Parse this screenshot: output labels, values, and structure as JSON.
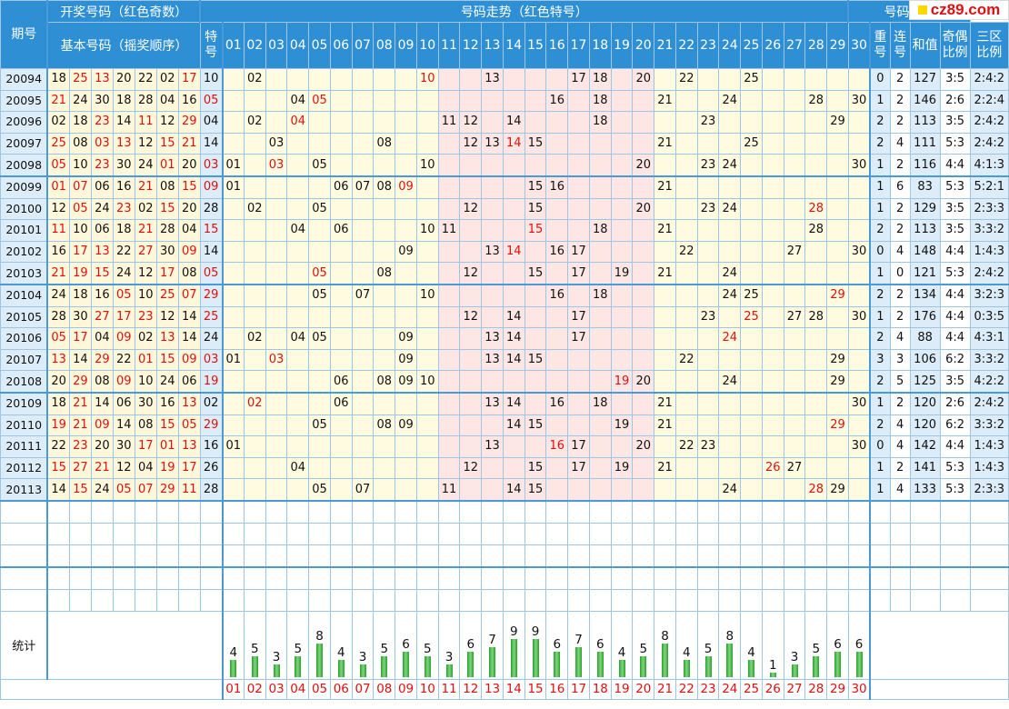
{
  "logo": {
    "text": "cz89.com"
  },
  "header": {
    "issue": "期号",
    "draw_numbers": "开奖号码（红色奇数）",
    "basic_numbers": "基本号码（摇奖顺序）",
    "special": "特号",
    "trend": "号码走势（红色特号）",
    "analysis": "号码分析",
    "repeat": "重号",
    "consecutive": "连号",
    "sum": "和值",
    "odd_even": "奇偶比例",
    "three_zone": "三区比例"
  },
  "columns": [
    "01",
    "02",
    "03",
    "04",
    "05",
    "06",
    "07",
    "08",
    "09",
    "10",
    "11",
    "12",
    "13",
    "14",
    "15",
    "16",
    "17",
    "18",
    "19",
    "20",
    "21",
    "22",
    "23",
    "24",
    "25",
    "26",
    "27",
    "28",
    "29",
    "30"
  ],
  "rows": [
    {
      "issue": "20094",
      "nums": [
        "18",
        "25",
        "13",
        "20",
        "22",
        "02",
        "17"
      ],
      "sp": "10",
      "sp_odd": false,
      "trend": [
        2,
        10,
        13,
        17,
        18,
        20,
        22,
        25
      ],
      "spcol": 10,
      "repeat": "0",
      "cons": "2",
      "sum": "127",
      "oe": "3:5",
      "zone": "2:4:2"
    },
    {
      "issue": "20095",
      "nums": [
        "21",
        "24",
        "30",
        "18",
        "28",
        "04",
        "16"
      ],
      "sp": "05",
      "sp_odd": true,
      "trend": [
        4,
        5,
        16,
        18,
        21,
        24,
        28,
        30
      ],
      "spcol": 5,
      "repeat": "1",
      "cons": "2",
      "sum": "146",
      "oe": "2:6",
      "zone": "2:2:4"
    },
    {
      "issue": "20096",
      "nums": [
        "02",
        "18",
        "23",
        "14",
        "11",
        "12",
        "29"
      ],
      "sp": "04",
      "sp_odd": false,
      "trend": [
        2,
        4,
        11,
        12,
        14,
        18,
        23,
        29
      ],
      "spcol": 4,
      "repeat": "2",
      "cons": "2",
      "sum": "113",
      "oe": "3:5",
      "zone": "2:4:2"
    },
    {
      "issue": "20097",
      "nums": [
        "25",
        "08",
        "03",
        "13",
        "12",
        "15",
        "21"
      ],
      "sp": "14",
      "sp_odd": false,
      "trend": [
        3,
        8,
        12,
        13,
        14,
        15,
        21,
        25
      ],
      "spcol": 14,
      "repeat": "2",
      "cons": "4",
      "sum": "111",
      "oe": "5:3",
      "zone": "2:4:2"
    },
    {
      "issue": "20098",
      "nums": [
        "05",
        "10",
        "23",
        "30",
        "24",
        "01",
        "20"
      ],
      "sp": "03",
      "sp_odd": true,
      "trend": [
        1,
        3,
        5,
        10,
        20,
        23,
        24,
        30
      ],
      "spcol": 3,
      "repeat": "1",
      "cons": "2",
      "sum": "116",
      "oe": "4:4",
      "zone": "4:1:3"
    },
    {
      "issue": "20099",
      "nums": [
        "01",
        "07",
        "06",
        "16",
        "21",
        "08",
        "15"
      ],
      "sp": "09",
      "sp_odd": true,
      "trend": [
        1,
        6,
        7,
        8,
        9,
        15,
        16,
        21
      ],
      "spcol": 9,
      "repeat": "1",
      "cons": "6",
      "sum": "83",
      "oe": "5:3",
      "zone": "5:2:1"
    },
    {
      "issue": "20100",
      "nums": [
        "12",
        "05",
        "24",
        "23",
        "02",
        "15",
        "20"
      ],
      "sp": "28",
      "sp_odd": false,
      "trend": [
        2,
        5,
        12,
        15,
        20,
        23,
        24,
        28
      ],
      "spcol": 28,
      "repeat": "1",
      "cons": "2",
      "sum": "129",
      "oe": "3:5",
      "zone": "2:3:3"
    },
    {
      "issue": "20101",
      "nums": [
        "11",
        "10",
        "06",
        "18",
        "21",
        "28",
        "04"
      ],
      "sp": "15",
      "sp_odd": true,
      "trend": [
        4,
        6,
        10,
        11,
        15,
        18,
        21,
        28
      ],
      "spcol": 15,
      "repeat": "2",
      "cons": "2",
      "sum": "113",
      "oe": "3:5",
      "zone": "3:3:2"
    },
    {
      "issue": "20102",
      "nums": [
        "16",
        "17",
        "13",
        "22",
        "27",
        "30",
        "09"
      ],
      "sp": "14",
      "sp_odd": false,
      "trend": [
        9,
        13,
        14,
        16,
        17,
        22,
        27,
        30
      ],
      "spcol": 14,
      "repeat": "0",
      "cons": "4",
      "sum": "148",
      "oe": "4:4",
      "zone": "1:4:3"
    },
    {
      "issue": "20103",
      "nums": [
        "21",
        "19",
        "15",
        "24",
        "12",
        "17",
        "08"
      ],
      "sp": "05",
      "sp_odd": true,
      "trend": [
        5,
        8,
        12,
        15,
        17,
        19,
        21,
        24
      ],
      "spcol": 5,
      "repeat": "1",
      "cons": "0",
      "sum": "121",
      "oe": "5:3",
      "zone": "2:4:2"
    },
    {
      "issue": "20104",
      "nums": [
        "24",
        "18",
        "16",
        "05",
        "10",
        "25",
        "07"
      ],
      "sp": "29",
      "sp_odd": true,
      "trend": [
        5,
        7,
        10,
        16,
        18,
        24,
        25,
        29
      ],
      "spcol": 29,
      "repeat": "2",
      "cons": "2",
      "sum": "134",
      "oe": "4:4",
      "zone": "3:2:3"
    },
    {
      "issue": "20105",
      "nums": [
        "28",
        "30",
        "27",
        "17",
        "23",
        "12",
        "14"
      ],
      "sp": "25",
      "sp_odd": true,
      "trend": [
        12,
        14,
        17,
        23,
        25,
        27,
        28,
        30
      ],
      "spcol": 25,
      "repeat": "1",
      "cons": "2",
      "sum": "176",
      "oe": "4:4",
      "zone": "0:3:5"
    },
    {
      "issue": "20106",
      "nums": [
        "05",
        "17",
        "04",
        "09",
        "02",
        "13",
        "14"
      ],
      "sp": "24",
      "sp_odd": false,
      "trend": [
        2,
        4,
        5,
        9,
        13,
        14,
        17,
        24
      ],
      "spcol": 24,
      "repeat": "2",
      "cons": "4",
      "sum": "88",
      "oe": "4:4",
      "zone": "4:3:1"
    },
    {
      "issue": "20107",
      "nums": [
        "13",
        "14",
        "29",
        "22",
        "01",
        "15",
        "09"
      ],
      "sp": "03",
      "sp_odd": true,
      "trend": [
        1,
        3,
        9,
        13,
        14,
        15,
        22,
        29
      ],
      "spcol": 3,
      "repeat": "3",
      "cons": "3",
      "sum": "106",
      "oe": "6:2",
      "zone": "3:3:2"
    },
    {
      "issue": "20108",
      "nums": [
        "20",
        "29",
        "08",
        "09",
        "10",
        "24",
        "06"
      ],
      "sp": "19",
      "sp_odd": true,
      "trend": [
        6,
        8,
        9,
        10,
        19,
        20,
        24,
        29
      ],
      "spcol": 19,
      "repeat": "2",
      "cons": "5",
      "sum": "125",
      "oe": "3:5",
      "zone": "4:2:2"
    },
    {
      "issue": "20109",
      "nums": [
        "18",
        "21",
        "14",
        "06",
        "30",
        "16",
        "13"
      ],
      "sp": "02",
      "sp_odd": false,
      "trend": [
        2,
        6,
        13,
        14,
        16,
        18,
        21,
        30
      ],
      "spcol": 2,
      "repeat": "1",
      "cons": "2",
      "sum": "120",
      "oe": "2:6",
      "zone": "2:4:2"
    },
    {
      "issue": "20110",
      "nums": [
        "19",
        "21",
        "09",
        "14",
        "08",
        "15",
        "05"
      ],
      "sp": "29",
      "sp_odd": true,
      "trend": [
        5,
        8,
        9,
        14,
        15,
        19,
        21,
        29
      ],
      "spcol": 29,
      "repeat": "2",
      "cons": "4",
      "sum": "120",
      "oe": "6:2",
      "zone": "3:3:2"
    },
    {
      "issue": "20111",
      "nums": [
        "22",
        "23",
        "20",
        "30",
        "17",
        "01",
        "13"
      ],
      "sp": "16",
      "sp_odd": false,
      "trend": [
        1,
        13,
        16,
        17,
        20,
        22,
        23,
        30
      ],
      "spcol": 16,
      "repeat": "0",
      "cons": "4",
      "sum": "142",
      "oe": "4:4",
      "zone": "1:4:3"
    },
    {
      "issue": "20112",
      "nums": [
        "15",
        "27",
        "21",
        "12",
        "04",
        "19",
        "17"
      ],
      "sp": "26",
      "sp_odd": false,
      "trend": [
        4,
        12,
        15,
        17,
        19,
        21,
        26,
        27
      ],
      "spcol": 26,
      "repeat": "1",
      "cons": "2",
      "sum": "141",
      "oe": "5:3",
      "zone": "1:4:3"
    },
    {
      "issue": "20113",
      "nums": [
        "14",
        "15",
        "24",
        "05",
        "07",
        "29",
        "11"
      ],
      "sp": "28",
      "sp_odd": false,
      "trend": [
        5,
        7,
        11,
        14,
        15,
        24,
        28,
        29
      ],
      "spcol": 28,
      "repeat": "1",
      "cons": "4",
      "sum": "133",
      "oe": "5:3",
      "zone": "2:3:3"
    }
  ],
  "stats_label": "统计",
  "stats": [
    4,
    5,
    3,
    5,
    8,
    4,
    3,
    5,
    6,
    5,
    3,
    6,
    7,
    9,
    9,
    6,
    7,
    6,
    4,
    5,
    8,
    4,
    5,
    8,
    4,
    1,
    3,
    5,
    6,
    6
  ],
  "colors": {
    "header": "#2f8fd4",
    "odd": "#e01010",
    "bar": "#2aa02a",
    "yellow": "#fff7da",
    "pink": "#fde6e3",
    "blue": "#dcecf8"
  }
}
